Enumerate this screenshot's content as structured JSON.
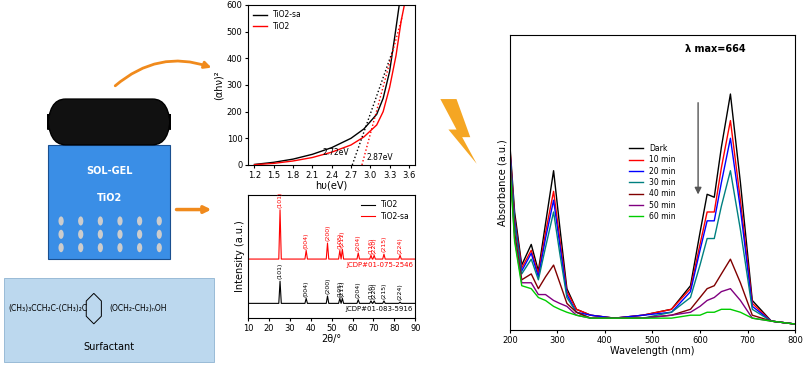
{
  "chart_data": [
    {
      "type": "line",
      "xlabel": "hυ(eV)",
      "ylabel": "(αhν)²",
      "xlim": [
        1.1,
        3.7
      ],
      "xticks": [
        1.2,
        1.5,
        1.8,
        2.1,
        2.4,
        2.7,
        3.0,
        3.3,
        3.6
      ],
      "ylim": [
        0,
        600
      ],
      "yticks": [
        0,
        100,
        200,
        300,
        400,
        500,
        600
      ],
      "legend": "upper left",
      "series": [
        {
          "name": "TiO2-sa",
          "color": "#000000",
          "line_style": "solid",
          "x": [
            1.2,
            1.5,
            1.8,
            2.1,
            2.4,
            2.7,
            2.9,
            3.1,
            3.2,
            3.3,
            3.38,
            3.45
          ],
          "values": [
            2,
            10,
            22,
            40,
            65,
            100,
            135,
            190,
            250,
            350,
            480,
            600
          ]
        },
        {
          "name": "TiO2",
          "color": "#ff0000",
          "line_style": "solid",
          "x": [
            1.2,
            1.5,
            1.8,
            2.1,
            2.4,
            2.7,
            2.9,
            3.1,
            3.2,
            3.3,
            3.4,
            3.48,
            3.53
          ],
          "values": [
            1,
            6,
            15,
            28,
            48,
            75,
            105,
            150,
            200,
            290,
            410,
            540,
            600
          ]
        },
        {
          "color": "#000000",
          "line_style": "dotted",
          "x": [
            2.72,
            3.35
          ],
          "values": [
            0,
            430
          ]
        },
        {
          "color": "#ff0000",
          "line_style": "dotted",
          "x": [
            2.87,
            3.5
          ],
          "values": [
            0,
            560
          ]
        }
      ],
      "annotations": [
        {
          "text": "2.72eV",
          "x": 2.72
        },
        {
          "text": "2.87eV",
          "x": 2.87
        }
      ]
    },
    {
      "type": "line",
      "xlabel": "2θ/°",
      "ylabel": "Intensity (a.u.)",
      "xlim": [
        10,
        90
      ],
      "xticks": [
        10,
        20,
        30,
        40,
        50,
        60,
        70,
        80,
        90
      ],
      "ylim": [
        0,
        100
      ],
      "tick_labels": "x",
      "legend": "upper right",
      "series": [
        {
          "name": "TiO2",
          "color": "#000000",
          "baseline": 12,
          "peaks": [
            25.3,
            37.8,
            48.0,
            53.9,
            55.1,
            62.7,
            68.8,
            70.3,
            75.0,
            82.7
          ],
          "values": [
            30,
            16,
            18,
            16,
            16,
            15,
            14,
            14,
            14,
            13
          ],
          "peak_labels": [
            "(101)",
            "(004)",
            "(200)",
            "(105)",
            "(211)",
            "(204)",
            "(116)",
            "(220)",
            "(215)",
            "(224)"
          ],
          "reference": "JCDP#01-083-5916"
        },
        {
          "name": "TiO2-sa",
          "color": "#ff0000",
          "baseline": 48,
          "peaks": [
            25.3,
            37.8,
            48.0,
            53.9,
            55.1,
            62.7,
            68.8,
            70.3,
            75.0,
            82.7
          ],
          "values": [
            88,
            55,
            61,
            55,
            56,
            53,
            51,
            51,
            52,
            51
          ],
          "peak_labels": [
            "(101)",
            "(004)",
            "(200)",
            "(105)",
            "(211)",
            "(204)",
            "(116)",
            "(220)",
            "(215)",
            "(224)"
          ],
          "reference": "JCDP#01-075-2546"
        }
      ]
    },
    {
      "type": "line",
      "xlabel": "Wavelength (nm)",
      "ylabel": "Absorbance (a.u.)",
      "xlim": [
        200,
        800
      ],
      "xticks": [
        200,
        300,
        400,
        500,
        600,
        700,
        800
      ],
      "ylim": [
        0,
        1.0
      ],
      "tick_labels": "x",
      "legend": "center",
      "annotations": [
        {
          "text": "λ max=664"
        }
      ],
      "x": [
        200,
        210,
        225,
        245,
        260,
        275,
        292,
        305,
        320,
        340,
        370,
        420,
        480,
        540,
        580,
        600,
        615,
        630,
        645,
        664,
        685,
        710,
        750,
        800
      ],
      "series": [
        {
          "name": "Dark",
          "color": "#000000",
          "values": [
            0.63,
            0.4,
            0.22,
            0.29,
            0.2,
            0.36,
            0.54,
            0.35,
            0.14,
            0.07,
            0.05,
            0.04,
            0.05,
            0.07,
            0.15,
            0.33,
            0.46,
            0.45,
            0.62,
            0.8,
            0.5,
            0.1,
            0.03,
            0.02
          ]
        },
        {
          "name": "10 min",
          "color": "#ff0000",
          "values": [
            0.62,
            0.38,
            0.21,
            0.27,
            0.19,
            0.33,
            0.47,
            0.31,
            0.13,
            0.07,
            0.05,
            0.04,
            0.05,
            0.07,
            0.14,
            0.29,
            0.4,
            0.4,
            0.55,
            0.71,
            0.44,
            0.09,
            0.03,
            0.02
          ]
        },
        {
          "name": "20 min",
          "color": "#0000ff",
          "values": [
            0.61,
            0.37,
            0.2,
            0.26,
            0.18,
            0.31,
            0.44,
            0.29,
            0.12,
            0.06,
            0.05,
            0.04,
            0.05,
            0.06,
            0.13,
            0.27,
            0.37,
            0.37,
            0.5,
            0.65,
            0.41,
            0.08,
            0.03,
            0.02
          ]
        },
        {
          "name": "30 min",
          "color": "#008080",
          "values": [
            0.6,
            0.36,
            0.19,
            0.24,
            0.17,
            0.28,
            0.4,
            0.26,
            0.11,
            0.06,
            0.04,
            0.04,
            0.04,
            0.06,
            0.11,
            0.22,
            0.31,
            0.31,
            0.42,
            0.54,
            0.34,
            0.07,
            0.03,
            0.02
          ]
        },
        {
          "name": "40 min",
          "color": "#800000",
          "values": [
            0.58,
            0.33,
            0.17,
            0.19,
            0.14,
            0.18,
            0.22,
            0.16,
            0.09,
            0.06,
            0.04,
            0.04,
            0.04,
            0.05,
            0.07,
            0.11,
            0.14,
            0.15,
            0.19,
            0.24,
            0.16,
            0.05,
            0.03,
            0.02
          ]
        },
        {
          "name": "50 min",
          "color": "#800080",
          "values": [
            0.57,
            0.31,
            0.16,
            0.16,
            0.12,
            0.12,
            0.1,
            0.09,
            0.08,
            0.05,
            0.04,
            0.04,
            0.04,
            0.05,
            0.06,
            0.08,
            0.1,
            0.11,
            0.13,
            0.14,
            0.1,
            0.04,
            0.03,
            0.02
          ]
        },
        {
          "name": "60 min",
          "color": "#00cc00",
          "values": [
            0.56,
            0.3,
            0.15,
            0.14,
            0.11,
            0.1,
            0.08,
            0.07,
            0.06,
            0.05,
            0.04,
            0.04,
            0.04,
            0.04,
            0.05,
            0.05,
            0.06,
            0.06,
            0.07,
            0.07,
            0.06,
            0.04,
            0.03,
            0.02
          ]
        }
      ]
    }
  ],
  "diagram": {
    "beaker": [
      "SOL-GEL",
      "TiO2"
    ],
    "surfactant": {
      "formula": [
        "(CH₃)₃CCH₂C-(CH₃)₂C",
        "(OCH₂-CH₂)ₙOH"
      ],
      "label": "Surfactant"
    }
  }
}
